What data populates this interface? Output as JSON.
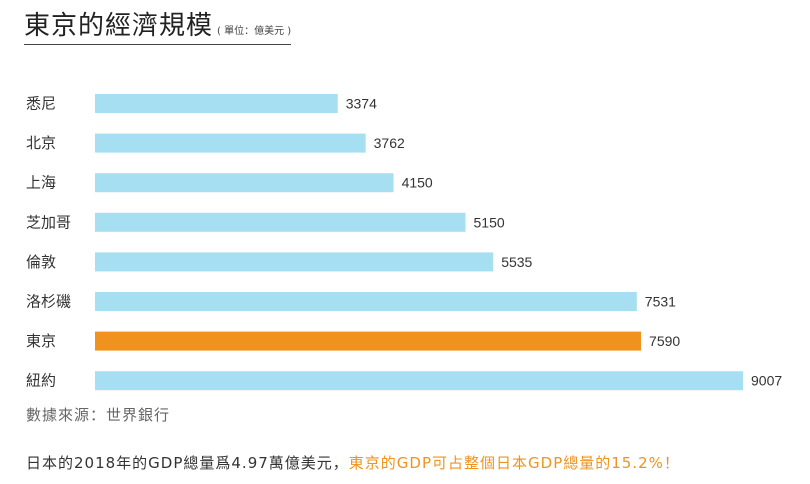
{
  "chart_data": {
    "type": "bar",
    "orientation": "horizontal",
    "title": "東京的經濟規模",
    "unit_note": "( 單位：億美元 )",
    "categories": [
      "悉尼",
      "北京",
      "上海",
      "芝加哥",
      "倫敦",
      "洛杉磯",
      "東京",
      "紐約"
    ],
    "values": [
      3374,
      3762,
      4150,
      5150,
      5535,
      7531,
      7590,
      9007
    ],
    "value_labels": [
      "3374",
      "3762",
      "4150",
      "5150",
      "5535",
      "7531",
      "7590",
      "9007"
    ],
    "highlight": "東京",
    "colors": {
      "bar": "#a7dff2",
      "highlight": "#f0931e"
    },
    "grid": false,
    "legend": "none"
  },
  "source_text": "數據來源：世界銀行",
  "footer": {
    "text_plain": "日本的2018年的GDP總量爲4.97萬億美元，",
    "text_highlight": "東京的GDP可占整個日本GDP總量的15.2%！"
  }
}
